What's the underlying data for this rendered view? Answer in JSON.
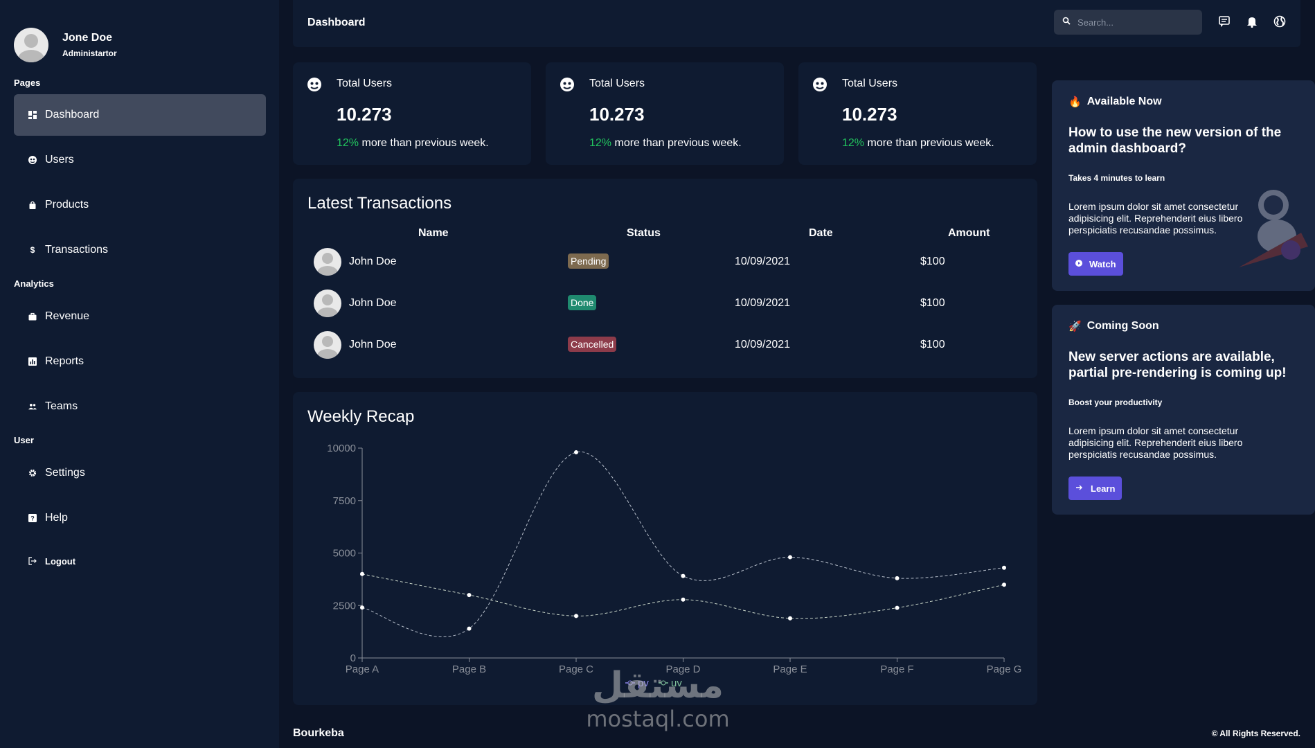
{
  "sidebar": {
    "profile": {
      "name": "Jone Doe",
      "role": "Administartor"
    },
    "sections": [
      {
        "label": "Pages"
      },
      {
        "label": "Analytics"
      },
      {
        "label": "User"
      }
    ],
    "items": [
      {
        "label": "Dashboard",
        "icon": "dashboard-icon"
      },
      {
        "label": "Users",
        "icon": "users-icon"
      },
      {
        "label": "Products",
        "icon": "shopping-bag-icon"
      },
      {
        "label": "Transactions",
        "icon": "dollar-icon"
      },
      {
        "label": "Revenue",
        "icon": "briefcase-icon"
      },
      {
        "label": "Reports",
        "icon": "chart-icon"
      },
      {
        "label": "Teams",
        "icon": "team-icon"
      },
      {
        "label": "Settings",
        "icon": "gear-icon"
      },
      {
        "label": "Help",
        "icon": "help-icon"
      },
      {
        "label": "Logout",
        "icon": "logout-icon"
      }
    ]
  },
  "header": {
    "title": "Dashboard",
    "search_placeholder": "Search..."
  },
  "stats": [
    {
      "label": "Total Users",
      "value": "10.273",
      "pct": "12%",
      "note": "more than previous week."
    },
    {
      "label": "Total Users",
      "value": "10.273",
      "pct": "12%",
      "note": "more than previous week."
    },
    {
      "label": "Total Users",
      "value": "10.273",
      "pct": "12%",
      "note": "more than previous week."
    }
  ],
  "transactions": {
    "title": "Latest Transactions",
    "columns": [
      "Name",
      "Status",
      "Date",
      "Amount"
    ],
    "rows": [
      {
        "name": "John Doe",
        "status": "Pending",
        "date": "10/09/2021",
        "amount": "$100"
      },
      {
        "name": "John Doe",
        "status": "Done",
        "date": "10/09/2021",
        "amount": "$100"
      },
      {
        "name": "John Doe",
        "status": "Cancelled",
        "date": "10/09/2021",
        "amount": "$100"
      }
    ],
    "status_colors": {
      "Pending": "#7d6a4f",
      "Done": "#1f8a6f",
      "Cancelled": "#8d3b4a"
    }
  },
  "weekly": {
    "title": "Weekly Recap"
  },
  "chart_data": {
    "type": "line",
    "title": "Weekly Recap",
    "x": [
      "Page A",
      "Page B",
      "Page C",
      "Page D",
      "Page E",
      "Page F",
      "Page G"
    ],
    "series": [
      {
        "name": "pv",
        "values": [
          2400,
          1398,
          9800,
          3908,
          4800,
          3800,
          4300
        ]
      },
      {
        "name": "uv",
        "values": [
          4000,
          3000,
          2000,
          2780,
          1890,
          2390,
          3490
        ]
      }
    ],
    "yticks": [
      "0",
      "2500",
      "5000",
      "7500",
      "10000"
    ],
    "ylim": [
      0,
      10000
    ],
    "legend": "bottom-center",
    "grid": false
  },
  "cards": [
    {
      "emoji": "🔥",
      "heading": "Available Now",
      "title": "How to use the new version of the admin dashboard?",
      "subtitle": "Takes 4 minutes to learn",
      "body": "Lorem ipsum dolor sit amet consectetur adipisicing elit. Reprehenderit eius libero perspiciatis recusandae possimus.",
      "button": "Watch"
    },
    {
      "emoji": "🚀",
      "heading": "Coming Soon",
      "title": "New server actions are available, partial pre-rendering is coming up!",
      "subtitle": "Boost your productivity",
      "body": "Lorem ipsum dolor sit amet consectetur adipisicing elit. Reprehenderit eius libero perspiciatis recusandae possimus.",
      "button": "Learn"
    }
  ],
  "footer": {
    "brand": "Bourkeba",
    "rights": "© All Rights Reserved."
  },
  "watermark": {
    "arabic": "مستقل",
    "latin": "mostaql.com"
  },
  "colors": {
    "sidebar": "#0f1b31",
    "background": "#0c1426",
    "accent": "#5b4fdb",
    "positive": "#22c55e",
    "active_item": "#414a5d"
  }
}
